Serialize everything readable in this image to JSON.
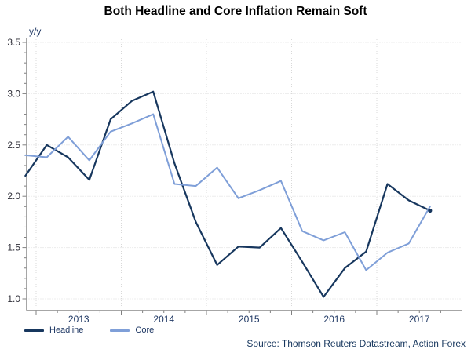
{
  "title": "Both Headline and Core Inflation Remain Soft",
  "y_axis": {
    "unit_label": "y/y",
    "tick_labels": [
      "3.5",
      "3.0",
      "2.5",
      "2.0",
      "1.5",
      "1.0"
    ],
    "tick_values": [
      3.5,
      3.0,
      2.5,
      2.0,
      1.5,
      1.0
    ],
    "min": 1.0,
    "max": 3.5,
    "minor_tick_step": 0.1
  },
  "x_axis": {
    "years": [
      2013,
      2014,
      2015,
      2016,
      2017
    ],
    "year_labels": [
      "2013",
      "2014",
      "2015",
      "2016",
      "2017"
    ],
    "minor_tick_unit": "quarter"
  },
  "legend": {
    "position": "bottom-left",
    "items": [
      {
        "label": "Headline",
        "color_key": "headline"
      },
      {
        "label": "Core",
        "color_key": "core"
      }
    ]
  },
  "source": "Source: Thomson Reuters Datastream, Action Forex",
  "colors": {
    "headline": "#17375e",
    "core": "#7f9fd8",
    "grid": "#d9d9d9",
    "axis": "#a6a6a6",
    "tick": "#808080",
    "year_text": "#1f3864",
    "ytick_text": "#30303a",
    "unit_text": "#1f3864",
    "title_text": "#000000",
    "source_text": "#17375e"
  },
  "chart_data": {
    "type": "line",
    "title": "Both Headline and Core Inflation Remain Soft",
    "ylabel": "y/y",
    "ylim": [
      1.0,
      3.5
    ],
    "grid": "dotted horizontal every 0.5, dotted vertical at year boundaries",
    "legend_position": "bottom-left",
    "x_start_quarter": "2012 Q4",
    "x_quarters": [
      "2012 Q4",
      "2013 Q1",
      "2013 Q2",
      "2013 Q3",
      "2013 Q4",
      "2014 Q1",
      "2014 Q2",
      "2014 Q3",
      "2014 Q4",
      "2015 Q1",
      "2015 Q2",
      "2015 Q3",
      "2015 Q4",
      "2016 Q1",
      "2016 Q2",
      "2016 Q3",
      "2016 Q4",
      "2017 Q1",
      "2017 Q2",
      "2017 Q3"
    ],
    "series": [
      {
        "name": "Headline",
        "color_key": "headline",
        "end_marker": true,
        "values": [
          2.2,
          2.5,
          2.38,
          2.16,
          2.75,
          2.93,
          3.02,
          2.32,
          1.75,
          1.33,
          1.51,
          1.5,
          1.69,
          1.36,
          1.02,
          1.3,
          1.46,
          2.12,
          1.96,
          1.86
        ]
      },
      {
        "name": "Core",
        "color_key": "core",
        "end_marker": false,
        "values": [
          2.4,
          2.38,
          2.58,
          2.35,
          2.63,
          2.71,
          2.8,
          2.12,
          2.1,
          2.28,
          1.98,
          2.06,
          2.15,
          1.66,
          1.57,
          1.65,
          1.28,
          1.45,
          1.54,
          1.9
        ]
      }
    ]
  }
}
